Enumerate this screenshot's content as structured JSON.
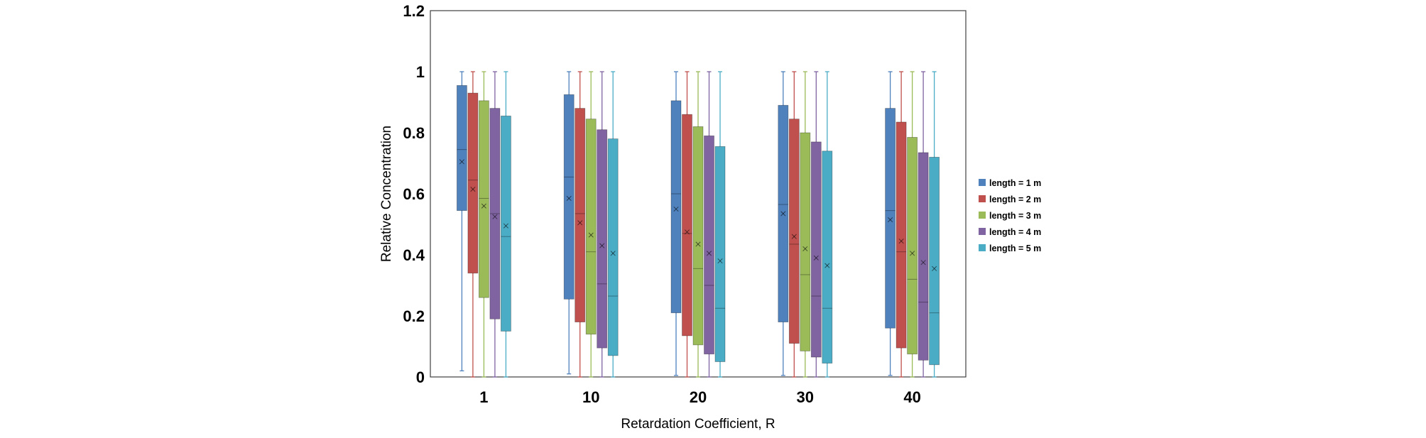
{
  "chart_data": {
    "type": "box",
    "title": "",
    "xlabel": "Retardation Coefficient, R",
    "ylabel": "Relative Concentration",
    "categories": [
      "1",
      "10",
      "20",
      "30",
      "40"
    ],
    "ylim": [
      0,
      1.2
    ],
    "yticks": [
      "0",
      "0.2",
      "0.4",
      "0.6",
      "0.8",
      "1",
      "1.2"
    ],
    "grid": false,
    "legend_position": "right",
    "series": [
      {
        "name": "length = 1 m",
        "color": "#4F81BD",
        "boxes": [
          {
            "min": 0.02,
            "q1": 0.545,
            "median": 0.745,
            "q3": 0.955,
            "max": 1.0,
            "mean": 0.705
          },
          {
            "min": 0.01,
            "q1": 0.255,
            "median": 0.655,
            "q3": 0.925,
            "max": 1.0,
            "mean": 0.585
          },
          {
            "min": 0.005,
            "q1": 0.21,
            "median": 0.6,
            "q3": 0.905,
            "max": 1.0,
            "mean": 0.55
          },
          {
            "min": 0.005,
            "q1": 0.18,
            "median": 0.565,
            "q3": 0.89,
            "max": 1.0,
            "mean": 0.535
          },
          {
            "min": 0.005,
            "q1": 0.16,
            "median": 0.545,
            "q3": 0.88,
            "max": 1.0,
            "mean": 0.515
          }
        ]
      },
      {
        "name": "length = 2 m",
        "color": "#C0504D",
        "boxes": [
          {
            "min": 0.0,
            "q1": 0.34,
            "median": 0.645,
            "q3": 0.93,
            "max": 1.0,
            "mean": 0.615
          },
          {
            "min": 0.0,
            "q1": 0.18,
            "median": 0.535,
            "q3": 0.88,
            "max": 1.0,
            "mean": 0.505
          },
          {
            "min": 0.0,
            "q1": 0.135,
            "median": 0.47,
            "q3": 0.86,
            "max": 1.0,
            "mean": 0.475
          },
          {
            "min": 0.0,
            "q1": 0.11,
            "median": 0.435,
            "q3": 0.845,
            "max": 1.0,
            "mean": 0.46
          },
          {
            "min": 0.0,
            "q1": 0.095,
            "median": 0.41,
            "q3": 0.835,
            "max": 1.0,
            "mean": 0.445
          }
        ]
      },
      {
        "name": "length = 3 m",
        "color": "#9BBB59",
        "boxes": [
          {
            "min": 0.0,
            "q1": 0.26,
            "median": 0.585,
            "q3": 0.905,
            "max": 1.0,
            "mean": 0.56
          },
          {
            "min": 0.0,
            "q1": 0.14,
            "median": 0.41,
            "q3": 0.845,
            "max": 1.0,
            "mean": 0.465
          },
          {
            "min": 0.0,
            "q1": 0.105,
            "median": 0.355,
            "q3": 0.82,
            "max": 1.0,
            "mean": 0.435
          },
          {
            "min": 0.0,
            "q1": 0.085,
            "median": 0.335,
            "q3": 0.8,
            "max": 1.0,
            "mean": 0.42
          },
          {
            "min": 0.0,
            "q1": 0.075,
            "median": 0.32,
            "q3": 0.785,
            "max": 1.0,
            "mean": 0.405
          }
        ]
      },
      {
        "name": "length = 4 m",
        "color": "#8064A2",
        "boxes": [
          {
            "min": 0.0,
            "q1": 0.19,
            "median": 0.535,
            "q3": 0.88,
            "max": 1.0,
            "mean": 0.525
          },
          {
            "min": 0.0,
            "q1": 0.095,
            "median": 0.305,
            "q3": 0.81,
            "max": 1.0,
            "mean": 0.43
          },
          {
            "min": 0.0,
            "q1": 0.075,
            "median": 0.3,
            "q3": 0.79,
            "max": 1.0,
            "mean": 0.405
          },
          {
            "min": 0.0,
            "q1": 0.065,
            "median": 0.265,
            "q3": 0.77,
            "max": 1.0,
            "mean": 0.39
          },
          {
            "min": 0.0,
            "q1": 0.055,
            "median": 0.245,
            "q3": 0.735,
            "max": 1.0,
            "mean": 0.375
          }
        ]
      },
      {
        "name": "length = 5 m",
        "color": "#4BACC6",
        "boxes": [
          {
            "min": 0.0,
            "q1": 0.15,
            "median": 0.46,
            "q3": 0.855,
            "max": 1.0,
            "mean": 0.495
          },
          {
            "min": 0.0,
            "q1": 0.07,
            "median": 0.265,
            "q3": 0.78,
            "max": 1.0,
            "mean": 0.405
          },
          {
            "min": 0.0,
            "q1": 0.05,
            "median": 0.225,
            "q3": 0.755,
            "max": 1.0,
            "mean": 0.38
          },
          {
            "min": 0.0,
            "q1": 0.045,
            "median": 0.225,
            "q3": 0.74,
            "max": 1.0,
            "mean": 0.365
          },
          {
            "min": 0.0,
            "q1": 0.04,
            "median": 0.21,
            "q3": 0.72,
            "max": 1.0,
            "mean": 0.355
          }
        ]
      }
    ]
  }
}
